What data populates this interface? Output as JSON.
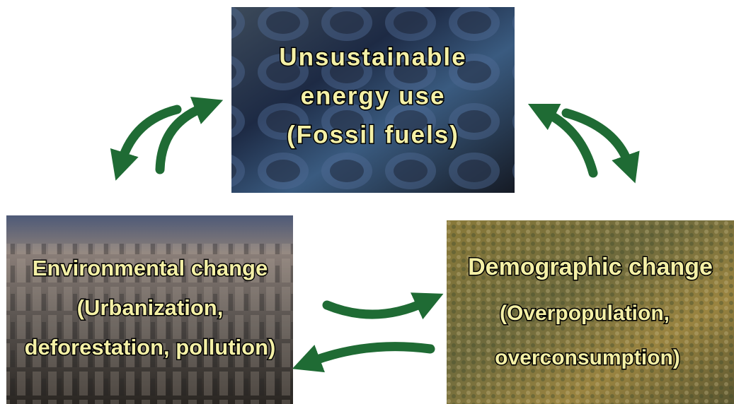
{
  "nodes": [
    {
      "lines": [
        "Unsustainable",
        "energy use",
        "(Fossil fuels)"
      ]
    },
    {
      "lines": [
        "Environmental change",
        "(Urbanization,",
        "deforestation, pollution)"
      ]
    },
    {
      "lines": [
        "Demographic change",
        "(Overpopulation,",
        "overconsumption)"
      ]
    }
  ]
}
